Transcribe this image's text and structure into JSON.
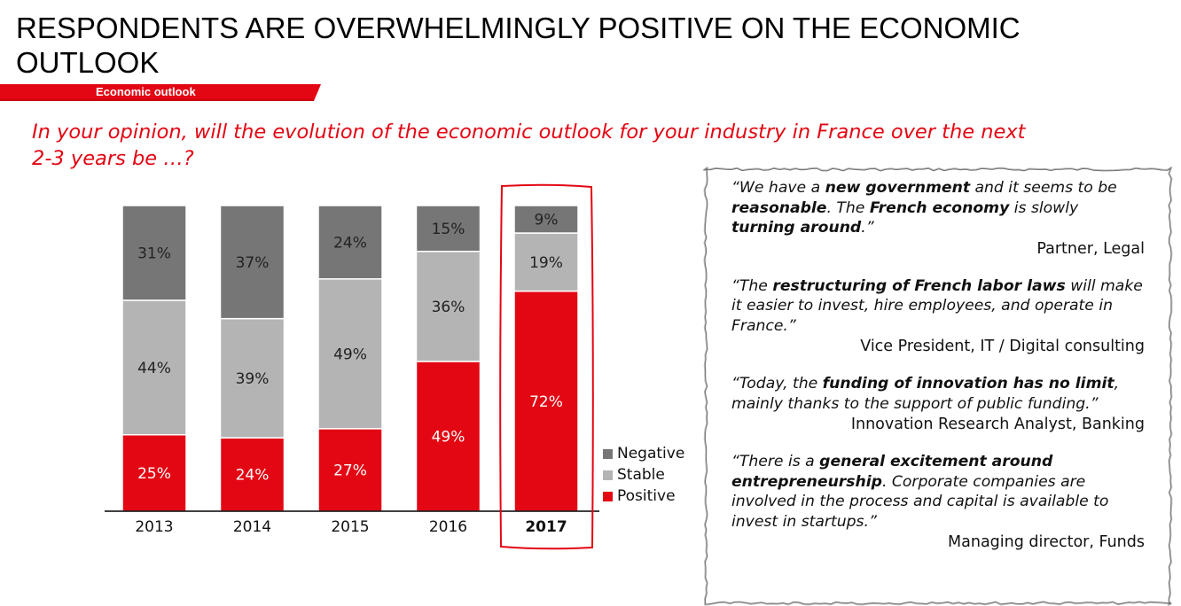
{
  "header": {
    "title": "RESPONDENTS ARE OVERWHELMINGLY POSITIVE ON THE ECONOMIC OUTLOOK",
    "section_label": "Economic outlook"
  },
  "question": "In your opinion, will the evolution of the economic outlook for your industry in France over the next 2-3 years be …?",
  "colors": {
    "negative": "#767676",
    "stable": "#b4b4b4",
    "positive": "#e30613",
    "accent": "#e30613"
  },
  "chart_data": {
    "type": "bar",
    "stacked": true,
    "title": "",
    "xlabel": "",
    "ylabel": "",
    "ylim": [
      0,
      100
    ],
    "categories": [
      "2013",
      "2014",
      "2015",
      "2016",
      "2017"
    ],
    "highlighted_category": "2017",
    "series": [
      {
        "name": "Positive",
        "values": [
          25,
          24,
          27,
          49,
          72
        ],
        "labels": [
          "25%",
          "24%",
          "27%",
          "49%",
          "72%"
        ]
      },
      {
        "name": "Stable",
        "values": [
          44,
          39,
          49,
          36,
          19
        ],
        "labels": [
          "44%",
          "39%",
          "49%",
          "36%",
          "19%"
        ]
      },
      {
        "name": "Negative",
        "values": [
          31,
          37,
          24,
          15,
          9
        ],
        "labels": [
          "31%",
          "37%",
          "24%",
          "15%",
          "9%"
        ]
      }
    ],
    "legend": {
      "position": "right",
      "entries": [
        "Negative",
        "Stable",
        "Positive"
      ]
    }
  },
  "quotes": [
    {
      "parts": [
        {
          "text": "“We have a ",
          "bold": false
        },
        {
          "text": "new government",
          "bold": true
        },
        {
          "text": " and it seems to be ",
          "bold": false
        },
        {
          "text": "reasonable",
          "bold": true
        },
        {
          "text": ". The ",
          "bold": false
        },
        {
          "text": "French economy",
          "bold": true
        },
        {
          "text": " is slowly ",
          "bold": false
        },
        {
          "text": "turning around",
          "bold": true
        },
        {
          "text": ".”",
          "bold": false
        }
      ],
      "source": "Partner, Legal"
    },
    {
      "parts": [
        {
          "text": "“The ",
          "bold": false
        },
        {
          "text": "restructuring of French labor laws",
          "bold": true
        },
        {
          "text": " will make it easier to invest, hire employees, and operate in France.”",
          "bold": false
        }
      ],
      "source": "Vice President, IT / Digital consulting"
    },
    {
      "parts": [
        {
          "text": "“Today, the ",
          "bold": false
        },
        {
          "text": "funding of innovation has no limit",
          "bold": true
        },
        {
          "text": ", mainly thanks to the support of public funding.”",
          "bold": false
        }
      ],
      "source": "Innovation Research Analyst, Banking"
    },
    {
      "parts": [
        {
          "text": "“There is a ",
          "bold": false
        },
        {
          "text": "general excitement around entrepreneurship",
          "bold": true
        },
        {
          "text": ". Corporate companies are involved in the process and capital is available to invest in startups.”",
          "bold": false
        }
      ],
      "source": "Managing director, Funds"
    }
  ]
}
